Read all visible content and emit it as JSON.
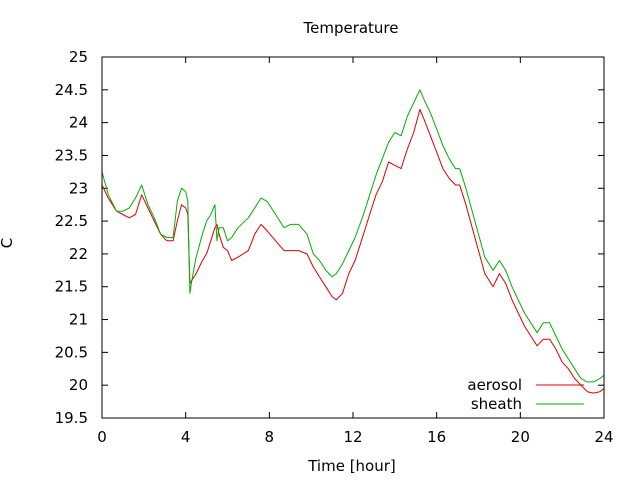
{
  "chart_data": {
    "type": "line",
    "title": "Temperature",
    "xlabel": "Time [hour]",
    "ylabel": "C",
    "xlim": [
      0,
      24
    ],
    "ylim": [
      19.5,
      25
    ],
    "xticks": [
      0,
      4,
      8,
      12,
      16,
      20,
      24
    ],
    "yticks": [
      19.5,
      20,
      20.5,
      21,
      21.5,
      22,
      22.5,
      23,
      23.5,
      24,
      24.5,
      25
    ],
    "grid": false,
    "legend_position": "bottom-right",
    "series": [
      {
        "name": "aerosol",
        "color": "#e00000",
        "x": [
          0,
          0.3,
          0.7,
          1.0,
          1.3,
          1.6,
          1.9,
          2.2,
          2.5,
          2.8,
          3.1,
          3.4,
          3.6,
          3.8,
          4.0,
          4.1,
          4.2,
          4.3,
          4.5,
          4.8,
          5.0,
          5.2,
          5.4,
          5.5,
          5.6,
          5.8,
          6.0,
          6.2,
          6.5,
          7.0,
          7.3,
          7.6,
          7.9,
          8.3,
          8.7,
          9.0,
          9.4,
          9.8,
          10.1,
          10.4,
          10.7,
          11.0,
          11.2,
          11.5,
          11.8,
          12.1,
          12.5,
          12.8,
          13.1,
          13.4,
          13.7,
          14.0,
          14.3,
          14.6,
          14.9,
          15.2,
          15.4,
          15.7,
          16.0,
          16.3,
          16.6,
          16.9,
          17.1,
          17.4,
          17.7,
          18.0,
          18.3,
          18.7,
          19.0,
          19.3,
          19.6,
          19.9,
          20.2,
          20.5,
          20.8,
          21.1,
          21.4,
          21.7,
          22.0,
          22.3,
          22.6,
          22.9,
          23.2,
          23.5,
          23.8,
          24.0
        ],
        "y": [
          23.05,
          22.85,
          22.65,
          22.6,
          22.55,
          22.6,
          22.9,
          22.7,
          22.5,
          22.3,
          22.2,
          22.2,
          22.5,
          22.75,
          22.7,
          22.6,
          21.55,
          21.6,
          21.7,
          21.9,
          22.0,
          22.2,
          22.4,
          22.45,
          22.3,
          22.1,
          22.05,
          21.9,
          21.95,
          22.05,
          22.3,
          22.45,
          22.35,
          22.2,
          22.05,
          22.05,
          22.05,
          22.0,
          21.8,
          21.65,
          21.5,
          21.35,
          21.3,
          21.4,
          21.7,
          21.9,
          22.3,
          22.6,
          22.9,
          23.1,
          23.4,
          23.35,
          23.3,
          23.6,
          23.85,
          24.2,
          24.05,
          23.8,
          23.55,
          23.3,
          23.15,
          23.05,
          23.05,
          22.75,
          22.4,
          22.05,
          21.7,
          21.5,
          21.7,
          21.55,
          21.3,
          21.1,
          20.9,
          20.75,
          20.6,
          20.7,
          20.7,
          20.55,
          20.35,
          20.25,
          20.1,
          20.0,
          19.9,
          19.88,
          19.9,
          19.95
        ]
      },
      {
        "name": "sheath",
        "color": "#00b000",
        "x": [
          0,
          0.3,
          0.7,
          1.0,
          1.3,
          1.6,
          1.9,
          2.2,
          2.5,
          2.8,
          3.1,
          3.4,
          3.6,
          3.8,
          4.0,
          4.1,
          4.2,
          4.3,
          4.5,
          4.8,
          5.0,
          5.2,
          5.4,
          5.5,
          5.6,
          5.8,
          6.0,
          6.2,
          6.5,
          7.0,
          7.3,
          7.6,
          7.9,
          8.3,
          8.7,
          9.0,
          9.4,
          9.8,
          10.1,
          10.4,
          10.7,
          11.0,
          11.2,
          11.5,
          11.8,
          12.1,
          12.5,
          12.8,
          13.1,
          13.4,
          13.7,
          14.0,
          14.3,
          14.6,
          14.9,
          15.2,
          15.4,
          15.7,
          16.0,
          16.3,
          16.6,
          16.9,
          17.1,
          17.4,
          17.7,
          18.0,
          18.3,
          18.7,
          19.0,
          19.3,
          19.6,
          19.9,
          20.2,
          20.5,
          20.8,
          21.1,
          21.4,
          21.7,
          22.0,
          22.3,
          22.6,
          22.9,
          23.2,
          23.5,
          23.8,
          24.0
        ],
        "y": [
          23.25,
          22.9,
          22.65,
          22.65,
          22.7,
          22.85,
          23.05,
          22.75,
          22.55,
          22.3,
          22.25,
          22.25,
          22.8,
          23.0,
          22.95,
          22.8,
          21.4,
          21.6,
          21.95,
          22.3,
          22.5,
          22.6,
          22.75,
          22.2,
          22.4,
          22.4,
          22.2,
          22.25,
          22.4,
          22.55,
          22.7,
          22.85,
          22.8,
          22.6,
          22.4,
          22.45,
          22.45,
          22.3,
          22.0,
          21.9,
          21.75,
          21.65,
          21.7,
          21.85,
          22.05,
          22.25,
          22.6,
          22.9,
          23.2,
          23.45,
          23.7,
          23.85,
          23.8,
          24.1,
          24.3,
          24.5,
          24.35,
          24.15,
          23.9,
          23.65,
          23.45,
          23.3,
          23.3,
          23.0,
          22.65,
          22.3,
          21.95,
          21.75,
          21.9,
          21.75,
          21.5,
          21.3,
          21.1,
          20.95,
          20.8,
          20.95,
          20.95,
          20.75,
          20.55,
          20.4,
          20.25,
          20.1,
          20.05,
          20.05,
          20.1,
          20.15
        ]
      }
    ]
  }
}
